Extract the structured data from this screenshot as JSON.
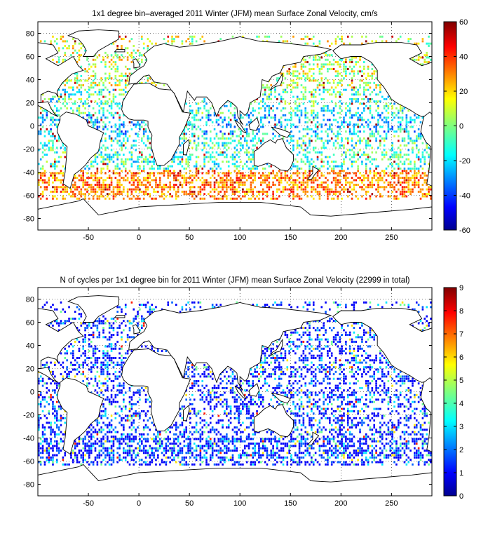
{
  "panels": [
    {
      "title": "1x1 degree bin–averaged 2011 Winter (JFM) mean Surface Zonal Velocity, cm/s",
      "x_ticks": [
        "-50",
        "0",
        "50",
        "100",
        "150",
        "200",
        "250"
      ],
      "y_ticks": [
        "80",
        "60",
        "40",
        "20",
        "0",
        "-20",
        "-40",
        "-60",
        "-80"
      ],
      "colorbar": {
        "ticks": [
          "60",
          "40",
          "20",
          "0",
          "-20",
          "-40",
          "-60"
        ],
        "min": -60,
        "max": 60,
        "colormap": "jet"
      }
    },
    {
      "title": "N of cycles per 1x1 degree bin for 2011 Winter (JFM) mean Surface Zonal Velocity (22999 in total)",
      "x_ticks": [
        "-50",
        "0",
        "50",
        "100",
        "150",
        "200",
        "250"
      ],
      "y_ticks": [
        "80",
        "60",
        "40",
        "20",
        "0",
        "-20",
        "-40",
        "-60",
        "-80"
      ],
      "colorbar": {
        "ticks": [
          "9",
          "8",
          "7",
          "6",
          "5",
          "4",
          "3",
          "2",
          "1",
          "0"
        ],
        "min": 0,
        "max": 9,
        "colormap": "jet"
      }
    }
  ],
  "chart_data": [
    {
      "type": "heatmap",
      "title": "1x1 degree bin–averaged 2011 Winter (JFM) mean Surface Zonal Velocity, cm/s",
      "xlim": [
        -100,
        290
      ],
      "ylim": [
        -90,
        90
      ],
      "grid": true,
      "colorbar_range": [
        -60,
        60
      ],
      "x_ticks": [
        -50,
        0,
        50,
        100,
        150,
        200,
        250
      ],
      "y_ticks": [
        80,
        60,
        40,
        20,
        0,
        -20,
        -40,
        -60,
        -80
      ]
    },
    {
      "type": "heatmap",
      "title": "N of cycles per 1x1 degree bin for 2011 Winter (JFM) mean Surface Zonal Velocity (22999 in total)",
      "xlim": [
        -100,
        290
      ],
      "ylim": [
        -90,
        90
      ],
      "grid": true,
      "colorbar_range": [
        0,
        9
      ],
      "total_count": 22999,
      "x_ticks": [
        -50,
        0,
        50,
        100,
        150,
        200,
        250
      ],
      "y_ticks": [
        80,
        60,
        40,
        20,
        0,
        -20,
        -40,
        -60,
        -80
      ]
    }
  ]
}
